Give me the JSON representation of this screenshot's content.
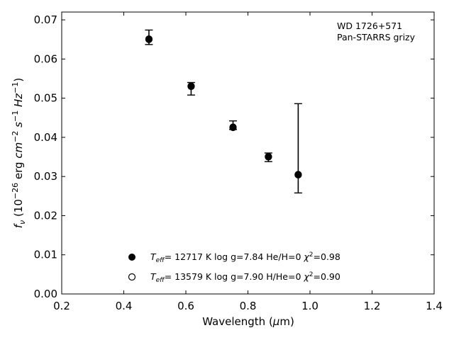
{
  "chart_data": {
    "type": "scatter",
    "title": "",
    "xlabel": {
      "pre": "Wavelength (",
      "mu": "μ",
      "post": "m)"
    },
    "ylabel": {
      "f": "f",
      "f_sub": "ν",
      "p1": " (10",
      "p1_sup": "−26",
      "p2": " erg ",
      "cm": "cm",
      "cm_sup": "−2",
      "s": "s",
      "s_sup": "−1",
      "hz": "Hz",
      "hz_sup": "−1",
      "close": ")"
    },
    "xlim": [
      0.2,
      1.4
    ],
    "ylim": [
      0.0,
      0.072
    ],
    "xticks": [
      "0.2",
      "0.4",
      "0.6",
      "0.8",
      "1.0",
      "1.2",
      "1.4"
    ],
    "yticks": [
      "0.00",
      "0.01",
      "0.02",
      "0.03",
      "0.04",
      "0.05",
      "0.06",
      "0.07"
    ],
    "annotation": [
      "WD 1726+571",
      "Pan-STARRS grizy"
    ],
    "observed": {
      "x": [
        0.481,
        0.617,
        0.752,
        0.866,
        0.962
      ],
      "y": [
        0.0655,
        0.0532,
        0.0428,
        0.0349,
        0.0302
      ],
      "err_low": [
        0.0637,
        0.0508,
        0.042,
        0.0338,
        0.0258
      ],
      "err_high": [
        0.0674,
        0.054,
        0.0442,
        0.036,
        0.0486
      ]
    },
    "series": [
      {
        "marker": "filled",
        "x": [
          0.481,
          0.617,
          0.752,
          0.866,
          0.962
        ],
        "y": [
          0.065,
          0.053,
          0.0425,
          0.035,
          0.0305
        ],
        "legend": {
          "t": "T",
          "t_sub": "eff",
          "a": "= 12717 K  log g=7.84  He/H=0  ",
          "chi": "χ",
          "chi_sup": "2",
          "b": "=0.98"
        }
      },
      {
        "marker": "open",
        "x": [
          0.481,
          0.617,
          0.752,
          0.866,
          0.962
        ],
        "y": [
          0.0651,
          0.0531,
          0.0426,
          0.0351,
          0.0304
        ],
        "legend": {
          "t": "T",
          "t_sub": "eff",
          "a": "= 13579 K  log g=7.90  H/He=0  ",
          "chi": "χ",
          "chi_sup": "2",
          "b": "=0.90"
        }
      }
    ],
    "legend_position": "lower-center"
  }
}
